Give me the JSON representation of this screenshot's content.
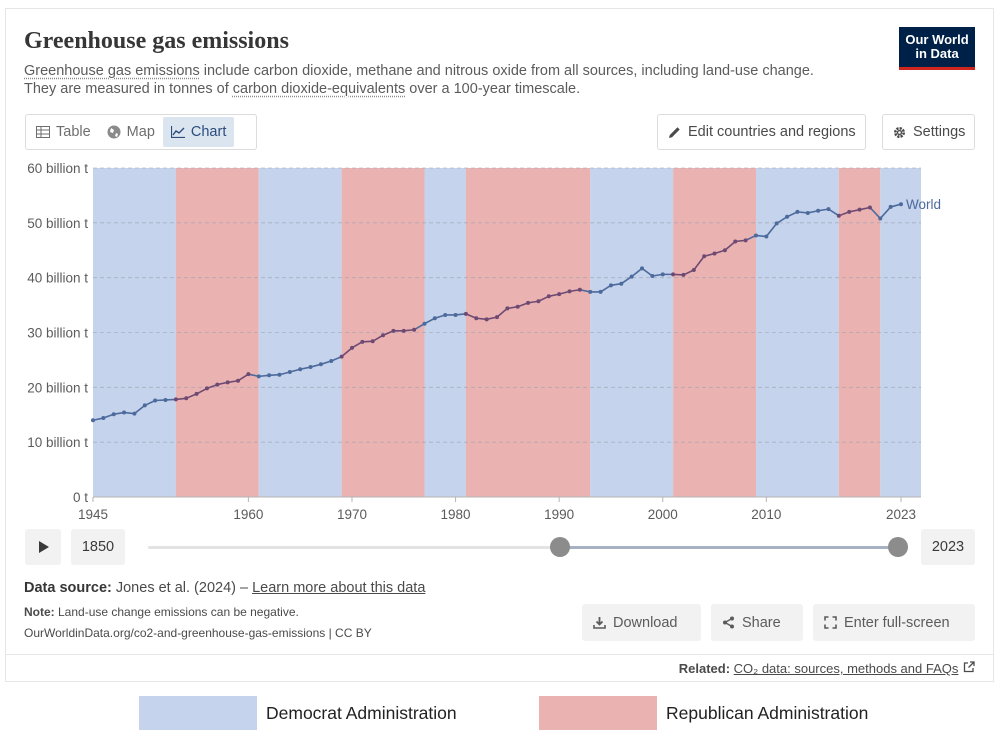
{
  "header": {
    "title": "Greenhouse gas emissions",
    "subtitle_link1": "Greenhouse gas emissions",
    "subtitle_part1": " include carbon dioxide, methane and nitrous oxide from all sources, including land-use change.",
    "subtitle_part2": "They are measured in tonnes of ",
    "subtitle_link2": "carbon dioxide-equivalents",
    "subtitle_part3": " over a 100-year timescale.",
    "logo_line1": "Our World",
    "logo_line2": "in Data"
  },
  "tabs": [
    {
      "label": "Table",
      "icon": "table-icon"
    },
    {
      "label": "Map",
      "icon": "globe-icon"
    },
    {
      "label": "Chart",
      "icon": "line-chart-icon"
    }
  ],
  "toolbar": {
    "edit_label": "Edit countries and regions",
    "settings_label": "Settings"
  },
  "timeline": {
    "start_year": "1850",
    "end_year": "2023"
  },
  "footer": {
    "source_label": "Data source:",
    "source_text": " Jones et al. (2024) – ",
    "learn_more": "Learn more about this data",
    "note_label": "Note:",
    "note_text": " Land-use change emissions can be negative.",
    "url_text": "OurWorldinData.org/co2-and-greenhouse-gas-emissions | CC BY",
    "download_label": "Download",
    "share_label": "Share",
    "fullscreen_label": "Enter full-screen",
    "related_label": "Related:",
    "related_link": "CO₂ data: sources, methods and FAQs"
  },
  "legend": {
    "democrat_label": "Democrat Administration",
    "republican_label": "Republican Administration"
  },
  "colors": {
    "democrat": "#c5d3ec",
    "republican": "#ebb2b2",
    "line": "#4c6a9c",
    "line_on_red": "#6e4a73"
  },
  "chart_data": {
    "type": "line",
    "title": "Greenhouse gas emissions",
    "xlabel": "",
    "ylabel": "",
    "xlim": [
      1945,
      2023
    ],
    "ylim": [
      0,
      60
    ],
    "y_ticks": [
      {
        "value": 0,
        "label": "0 t"
      },
      {
        "value": 10,
        "label": "10 billion t"
      },
      {
        "value": 20,
        "label": "20 billion t"
      },
      {
        "value": 30,
        "label": "30 billion t"
      },
      {
        "value": 40,
        "label": "40 billion t"
      },
      {
        "value": 50,
        "label": "50 billion t"
      },
      {
        "value": 60,
        "label": "60 billion t"
      }
    ],
    "x_ticks": [
      1945,
      1960,
      1970,
      1980,
      1990,
      2000,
      2010,
      2023
    ],
    "series": [
      {
        "name": "World",
        "x": [
          1945,
          1946,
          1947,
          1948,
          1949,
          1950,
          1951,
          1952,
          1953,
          1954,
          1955,
          1956,
          1957,
          1958,
          1959,
          1960,
          1961,
          1962,
          1963,
          1964,
          1965,
          1966,
          1967,
          1968,
          1969,
          1970,
          1971,
          1972,
          1973,
          1974,
          1975,
          1976,
          1977,
          1978,
          1979,
          1980,
          1981,
          1982,
          1983,
          1984,
          1985,
          1986,
          1987,
          1988,
          1989,
          1990,
          1991,
          1992,
          1993,
          1994,
          1995,
          1996,
          1997,
          1998,
          1999,
          2000,
          2001,
          2002,
          2003,
          2004,
          2005,
          2006,
          2007,
          2008,
          2009,
          2010,
          2011,
          2012,
          2013,
          2014,
          2015,
          2016,
          2017,
          2018,
          2019,
          2020,
          2021,
          2022,
          2023
        ],
        "values": [
          14.0,
          14.4,
          15.1,
          15.4,
          15.2,
          16.7,
          17.6,
          17.7,
          17.8,
          18.0,
          18.8,
          19.8,
          20.5,
          20.9,
          21.2,
          22.4,
          22.0,
          22.2,
          22.3,
          22.8,
          23.3,
          23.7,
          24.2,
          24.8,
          25.6,
          27.2,
          28.3,
          28.4,
          29.5,
          30.3,
          30.3,
          30.5,
          31.6,
          32.6,
          33.2,
          33.2,
          33.4,
          32.6,
          32.4,
          32.8,
          34.4,
          34.7,
          35.4,
          35.7,
          36.6,
          37.0,
          37.5,
          37.8,
          37.4,
          37.4,
          38.6,
          38.9,
          40.2,
          41.7,
          40.3,
          40.6,
          40.6,
          40.5,
          41.4,
          43.9,
          44.4,
          45.0,
          46.6,
          46.8,
          47.7,
          47.5,
          49.9,
          51.1,
          52.0,
          51.8,
          52.2,
          52.5,
          51.3,
          52.0,
          52.4,
          52.8,
          50.8,
          52.9,
          53.4
        ]
      }
    ],
    "administrations": [
      {
        "party": "Democrat",
        "start": 1945,
        "end": 1953
      },
      {
        "party": "Republican",
        "start": 1953,
        "end": 1961
      },
      {
        "party": "Democrat",
        "start": 1961,
        "end": 1969
      },
      {
        "party": "Republican",
        "start": 1969,
        "end": 1977
      },
      {
        "party": "Democrat",
        "start": 1977,
        "end": 1981
      },
      {
        "party": "Republican",
        "start": 1981,
        "end": 1993
      },
      {
        "party": "Democrat",
        "start": 1993,
        "end": 2001
      },
      {
        "party": "Republican",
        "start": 2001,
        "end": 2009
      },
      {
        "party": "Democrat",
        "start": 2009,
        "end": 2017
      },
      {
        "party": "Republican",
        "start": 2017,
        "end": 2021
      },
      {
        "party": "Democrat",
        "start": 2021,
        "end": 2025
      }
    ],
    "series_label": "World",
    "legend": [
      "Democrat Administration",
      "Republican Administration"
    ]
  }
}
